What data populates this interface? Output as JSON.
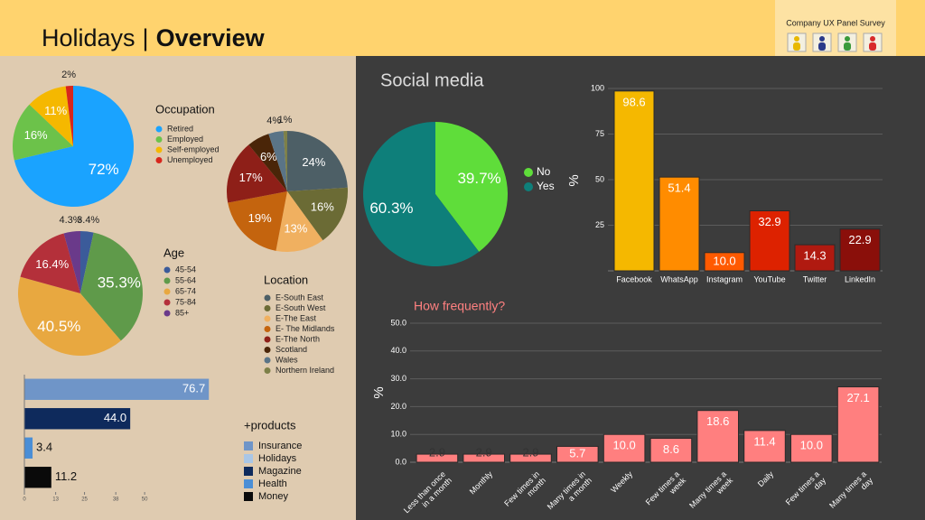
{
  "header": {
    "title": "Holidays",
    "separator": "|",
    "title_bold": "Overview",
    "badge": "Company UX Panel Survey"
  },
  "chart_data": [
    {
      "type": "pie",
      "title": "Occupation",
      "categories": [
        "Retired",
        "Employed",
        "Self-employed",
        "Unemployed"
      ],
      "values": [
        72,
        16,
        11,
        2
      ],
      "value_labels": [
        "72%",
        "16%",
        "11%",
        "2%"
      ],
      "colors": [
        "#1aa3ff",
        "#6cc24a",
        "#f5b800",
        "#d8261c"
      ]
    },
    {
      "type": "pie",
      "title": "Location",
      "categories": [
        "E-South East",
        "E-South West",
        "E-The East",
        "E- The Midlands",
        "E-The North",
        "Scotland",
        "Wales",
        "Northern Ireland"
      ],
      "values": [
        24,
        16,
        13,
        19,
        17,
        6,
        4,
        1
      ],
      "value_labels": [
        "24%",
        "16%",
        "13%",
        "19%",
        "17%",
        "6%",
        "4%",
        "1%"
      ],
      "colors": [
        "#4d5f66",
        "#6b6b35",
        "#f0b060",
        "#c4640e",
        "#8e1f18",
        "#4a2508",
        "#5a7487",
        "#7d8048"
      ]
    },
    {
      "type": "pie",
      "title": "Age",
      "categories": [
        "45-54",
        "55-64",
        "65-74",
        "75-84",
        "85+"
      ],
      "values": [
        3.4,
        35.3,
        40.5,
        16.4,
        4.3
      ],
      "value_labels": [
        "3.4%",
        "35.3%",
        "40.5%",
        "16.4%",
        "4.3%"
      ],
      "colors": [
        "#3b5b9a",
        "#5f9a4a",
        "#e8a840",
        "#b4303a",
        "#6a3a8a"
      ]
    },
    {
      "type": "hbar",
      "title": "+products",
      "series": [
        {
          "name": "Insurance",
          "color": "#6f95c8",
          "values": [
            76.7
          ]
        },
        {
          "name": "Holidays",
          "color": "#a9c6e6",
          "values": [
            null
          ]
        },
        {
          "name": "Magazine",
          "color": "#0e2a5c",
          "values": [
            44.0
          ],
          "value_labels": [
            "44.0"
          ]
        },
        {
          "name": "Health",
          "color": "#4a8ed6",
          "values": [
            3.4
          ]
        },
        {
          "name": "Money",
          "color": "#0a0a0a",
          "values": [
            11.2
          ]
        }
      ],
      "xlim": [
        0,
        80
      ],
      "xticks": [
        0,
        13,
        25,
        38,
        50
      ]
    },
    {
      "type": "pie",
      "title": "Social media",
      "categories": [
        "No",
        "Yes"
      ],
      "values": [
        39.7,
        60.3
      ],
      "value_labels": [
        "39.7%",
        "60.3%"
      ],
      "colors": [
        "#5fdd3a",
        "#0e7f7a"
      ]
    },
    {
      "type": "bar",
      "categories": [
        "Facebook",
        "WhatsApp",
        "Instagram",
        "YouTube",
        "Twitter",
        "LinkedIn"
      ],
      "values": [
        98.6,
        51.4,
        10.0,
        32.9,
        14.3,
        22.9
      ],
      "value_labels": [
        "98.6",
        "51.4",
        "10.0",
        "32.9",
        "14.3",
        "22.9"
      ],
      "colors": [
        "#f5b800",
        "#ff8c00",
        "#ff5a00",
        "#dd2200",
        "#b01a10",
        "#8a0f0a"
      ],
      "ylabel": "%",
      "ylim": [
        0,
        100
      ],
      "yticks": [
        25,
        50,
        75,
        100
      ],
      "grid": true
    },
    {
      "type": "bar",
      "title": "How frequently?",
      "categories": [
        "Less than once in a month",
        "Monthly",
        "Few times in month",
        "Many times in a month",
        "Weekly",
        "Few times a week",
        "Many times a week",
        "Daily",
        "Few times a day",
        "Many times a day"
      ],
      "values": [
        2.9,
        2.9,
        2.9,
        5.7,
        10.0,
        8.6,
        18.6,
        11.4,
        10.0,
        27.1
      ],
      "value_labels": [
        "2.9",
        "2.9",
        "2.9",
        "5.7",
        "10.0",
        "8.6",
        "18.6",
        "11.4",
        "10.0",
        "27.1"
      ],
      "color": "#ff7f7f",
      "ylabel": "%",
      "ylim": [
        0,
        50
      ],
      "yticks": [
        {
          "value": 0,
          "label": "0.0"
        },
        {
          "value": 10,
          "label": "10.0"
        },
        {
          "value": 20,
          "label": "20.0"
        },
        {
          "value": 30,
          "label": "30.0"
        },
        {
          "value": 40,
          "label": "40.0"
        },
        {
          "value": 50,
          "label": "50.0"
        }
      ],
      "grid": true
    }
  ]
}
